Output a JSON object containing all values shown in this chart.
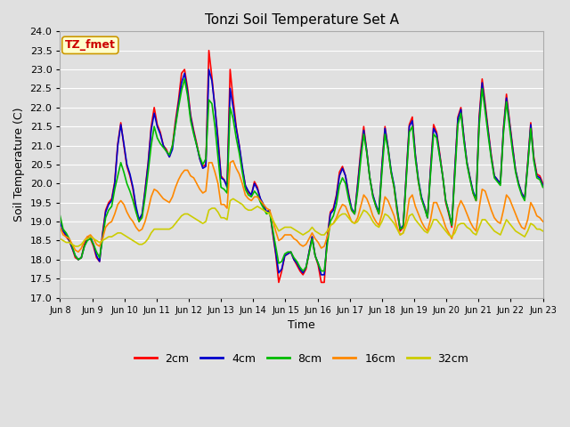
{
  "title": "Tonzi Soil Temperature Set A",
  "xlabel": "Time",
  "ylabel": "Soil Temperature (C)",
  "ylim": [
    17.0,
    24.0
  ],
  "yticks": [
    17.0,
    17.5,
    18.0,
    18.5,
    19.0,
    19.5,
    20.0,
    20.5,
    21.0,
    21.5,
    22.0,
    22.5,
    23.0,
    23.5,
    24.0
  ],
  "xtick_labels": [
    "Jun 8",
    "Jun 9",
    "Jun 10",
    "Jun 11",
    "Jun 12",
    "Jun 13",
    "Jun 14",
    "Jun 15",
    "Jun 16",
    "Jun 17",
    "Jun 18",
    "Jun 19",
    "Jun 20",
    "Jun 21",
    "Jun 22",
    "Jun 23"
  ],
  "annotation_text": "TZ_fmet",
  "annotation_color": "#cc0000",
  "annotation_bg": "#ffffcc",
  "annotation_border": "#cc9900",
  "background_color": "#e0e0e0",
  "grid_color": "#ffffff",
  "series": [
    {
      "label": "2cm",
      "color": "#ff0000",
      "linewidth": 1.2,
      "values": [
        19.05,
        18.75,
        18.6,
        18.5,
        18.3,
        18.05,
        18.0,
        18.05,
        18.4,
        18.6,
        18.55,
        18.35,
        18.05,
        17.95,
        18.7,
        19.3,
        19.5,
        19.6,
        20.05,
        21.05,
        21.6,
        21.0,
        20.45,
        20.2,
        19.85,
        19.3,
        19.0,
        19.15,
        19.85,
        20.55,
        21.5,
        22.0,
        21.55,
        21.35,
        21.0,
        20.9,
        20.7,
        21.0,
        21.65,
        22.2,
        22.9,
        23.0,
        22.5,
        21.8,
        21.4,
        21.05,
        20.65,
        20.45,
        20.5,
        23.5,
        22.8,
        22.0,
        21.2,
        20.2,
        20.1,
        19.95,
        23.0,
        22.2,
        21.5,
        21.0,
        20.4,
        19.95,
        19.75,
        19.7,
        20.05,
        19.9,
        19.55,
        19.4,
        19.25,
        19.3,
        18.7,
        18.15,
        17.4,
        17.7,
        18.1,
        18.15,
        18.2,
        18.0,
        17.85,
        17.7,
        17.6,
        17.75,
        18.2,
        18.6,
        18.1,
        17.85,
        17.4,
        17.4,
        18.6,
        19.25,
        19.35,
        19.7,
        20.3,
        20.45,
        20.2,
        19.75,
        19.3,
        19.2,
        20.0,
        20.85,
        21.5,
        20.85,
        20.15,
        19.7,
        19.4,
        19.2,
        20.5,
        21.5,
        20.95,
        20.3,
        19.9,
        19.25,
        18.75,
        18.85,
        20.25,
        21.55,
        21.75,
        20.75,
        20.05,
        19.6,
        19.4,
        19.1,
        20.4,
        21.55,
        21.35,
        20.8,
        20.2,
        19.5,
        19.2,
        18.85,
        20.4,
        21.75,
        22.0,
        21.2,
        20.55,
        20.15,
        19.75,
        19.55,
        21.75,
        22.75,
        22.1,
        21.4,
        20.75,
        20.2,
        20.1,
        20.0,
        21.45,
        22.35,
        21.65,
        21.0,
        20.35,
        20.0,
        19.75,
        19.6,
        20.55,
        21.6,
        20.7,
        20.25,
        20.2,
        20.0
      ]
    },
    {
      "label": "4cm",
      "color": "#0000cc",
      "linewidth": 1.2,
      "values": [
        19.0,
        18.75,
        18.65,
        18.5,
        18.3,
        18.1,
        18.0,
        18.05,
        18.35,
        18.55,
        18.6,
        18.4,
        18.1,
        17.95,
        18.65,
        19.25,
        19.45,
        19.55,
        20.0,
        21.0,
        21.55,
        21.05,
        20.5,
        20.25,
        19.9,
        19.4,
        19.05,
        19.2,
        19.8,
        20.5,
        21.4,
        21.85,
        21.5,
        21.3,
        21.0,
        20.85,
        20.7,
        20.9,
        21.55,
        22.1,
        22.65,
        22.9,
        22.4,
        21.75,
        21.35,
        21.0,
        20.65,
        20.4,
        20.45,
        23.0,
        22.7,
        22.0,
        21.1,
        20.15,
        20.1,
        19.9,
        22.5,
        22.0,
        21.45,
        21.0,
        20.45,
        19.95,
        19.8,
        19.7,
        20.0,
        19.85,
        19.6,
        19.45,
        19.25,
        19.3,
        18.75,
        18.2,
        17.65,
        17.75,
        18.1,
        18.15,
        18.2,
        18.0,
        17.9,
        17.75,
        17.65,
        17.8,
        18.2,
        18.6,
        18.1,
        17.9,
        17.6,
        17.6,
        18.55,
        19.2,
        19.3,
        19.65,
        20.2,
        20.4,
        20.2,
        19.7,
        19.35,
        19.2,
        19.95,
        20.75,
        21.4,
        20.85,
        20.15,
        19.7,
        19.45,
        19.25,
        20.45,
        21.45,
        20.95,
        20.35,
        19.95,
        19.35,
        18.8,
        18.9,
        20.2,
        21.5,
        21.65,
        20.75,
        20.1,
        19.65,
        19.4,
        19.1,
        20.35,
        21.45,
        21.3,
        20.75,
        20.2,
        19.55,
        19.25,
        18.9,
        20.35,
        21.7,
        21.95,
        21.2,
        20.55,
        20.15,
        19.8,
        19.6,
        21.65,
        22.65,
        22.0,
        21.35,
        20.7,
        20.2,
        20.1,
        20.0,
        21.4,
        22.25,
        21.6,
        20.95,
        20.35,
        20.0,
        19.75,
        19.6,
        20.5,
        21.55,
        20.65,
        20.2,
        20.15,
        19.95
      ]
    },
    {
      "label": "8cm",
      "color": "#00bb00",
      "linewidth": 1.2,
      "values": [
        19.15,
        18.8,
        18.7,
        18.55,
        18.35,
        18.1,
        18.0,
        18.05,
        18.35,
        18.5,
        18.55,
        18.4,
        18.2,
        18.05,
        18.55,
        19.1,
        19.3,
        19.4,
        19.85,
        20.2,
        20.55,
        20.3,
        20.0,
        19.8,
        19.55,
        19.25,
        19.0,
        19.1,
        19.65,
        20.3,
        21.0,
        21.5,
        21.2,
        21.05,
        20.95,
        20.85,
        20.75,
        21.0,
        21.5,
        22.0,
        22.45,
        22.75,
        22.3,
        21.65,
        21.3,
        21.0,
        20.7,
        20.5,
        20.65,
        22.2,
        22.1,
        21.5,
        20.7,
        19.9,
        19.85,
        19.75,
        22.0,
        21.7,
        21.2,
        20.8,
        20.3,
        19.85,
        19.7,
        19.65,
        19.8,
        19.7,
        19.5,
        19.35,
        19.2,
        19.25,
        18.8,
        18.35,
        17.9,
        17.95,
        18.15,
        18.2,
        18.2,
        18.05,
        17.95,
        17.8,
        17.7,
        17.8,
        18.15,
        18.55,
        18.1,
        17.9,
        17.7,
        17.7,
        18.4,
        19.0,
        19.15,
        19.45,
        19.95,
        20.15,
        20.0,
        19.6,
        19.3,
        19.2,
        19.8,
        20.6,
        21.3,
        20.8,
        20.15,
        19.65,
        19.4,
        19.2,
        20.3,
        21.3,
        20.9,
        20.3,
        19.9,
        19.3,
        18.8,
        18.85,
        20.1,
        21.35,
        21.5,
        20.65,
        20.05,
        19.6,
        19.35,
        19.1,
        20.25,
        21.3,
        21.2,
        20.7,
        20.2,
        19.55,
        19.25,
        18.9,
        20.2,
        21.55,
        21.85,
        21.1,
        20.5,
        20.1,
        19.75,
        19.55,
        21.5,
        22.5,
        21.9,
        21.25,
        20.65,
        20.15,
        20.05,
        19.95,
        21.3,
        22.15,
        21.5,
        20.85,
        20.3,
        19.95,
        19.7,
        19.55,
        20.45,
        21.45,
        20.6,
        20.15,
        20.1,
        19.9
      ]
    },
    {
      "label": "16cm",
      "color": "#ff8800",
      "linewidth": 1.2,
      "values": [
        18.85,
        18.65,
        18.6,
        18.55,
        18.4,
        18.25,
        18.2,
        18.3,
        18.5,
        18.6,
        18.65,
        18.55,
        18.4,
        18.35,
        18.55,
        18.85,
        18.95,
        19.0,
        19.2,
        19.45,
        19.55,
        19.45,
        19.25,
        19.1,
        19.0,
        18.85,
        18.75,
        18.8,
        19.0,
        19.3,
        19.65,
        19.85,
        19.8,
        19.7,
        19.6,
        19.55,
        19.5,
        19.65,
        19.9,
        20.1,
        20.25,
        20.35,
        20.35,
        20.2,
        20.15,
        20.0,
        19.85,
        19.75,
        19.8,
        20.55,
        20.55,
        20.3,
        20.0,
        19.45,
        19.45,
        19.35,
        20.55,
        20.6,
        20.4,
        20.25,
        20.0,
        19.7,
        19.6,
        19.55,
        19.65,
        19.65,
        19.55,
        19.45,
        19.35,
        19.3,
        19.05,
        18.75,
        18.5,
        18.55,
        18.65,
        18.65,
        18.65,
        18.55,
        18.5,
        18.4,
        18.35,
        18.4,
        18.55,
        18.7,
        18.55,
        18.45,
        18.3,
        18.35,
        18.6,
        18.9,
        18.95,
        19.1,
        19.3,
        19.45,
        19.4,
        19.2,
        19.0,
        18.95,
        19.1,
        19.4,
        19.7,
        19.6,
        19.4,
        19.15,
        19.0,
        18.9,
        19.2,
        19.65,
        19.55,
        19.35,
        19.15,
        18.85,
        18.65,
        18.7,
        19.05,
        19.6,
        19.7,
        19.4,
        19.2,
        19.0,
        18.85,
        18.75,
        19.05,
        19.5,
        19.5,
        19.3,
        19.1,
        18.85,
        18.7,
        18.55,
        18.85,
        19.35,
        19.55,
        19.4,
        19.2,
        19.0,
        18.85,
        18.75,
        19.35,
        19.85,
        19.8,
        19.55,
        19.3,
        19.1,
        19.0,
        18.95,
        19.3,
        19.7,
        19.6,
        19.4,
        19.2,
        19.0,
        18.85,
        18.8,
        19.05,
        19.5,
        19.35,
        19.15,
        19.1,
        19.0
      ]
    },
    {
      "label": "32cm",
      "color": "#cccc00",
      "linewidth": 1.2,
      "values": [
        18.55,
        18.5,
        18.45,
        18.45,
        18.4,
        18.35,
        18.35,
        18.4,
        18.5,
        18.55,
        18.6,
        18.55,
        18.5,
        18.45,
        18.5,
        18.55,
        18.6,
        18.6,
        18.65,
        18.7,
        18.7,
        18.65,
        18.6,
        18.55,
        18.5,
        18.45,
        18.4,
        18.4,
        18.45,
        18.55,
        18.7,
        18.8,
        18.8,
        18.8,
        18.8,
        18.8,
        18.8,
        18.85,
        18.95,
        19.05,
        19.15,
        19.2,
        19.2,
        19.15,
        19.1,
        19.05,
        19.0,
        18.95,
        19.0,
        19.3,
        19.35,
        19.35,
        19.25,
        19.1,
        19.1,
        19.05,
        19.55,
        19.6,
        19.55,
        19.5,
        19.45,
        19.35,
        19.3,
        19.3,
        19.35,
        19.4,
        19.35,
        19.3,
        19.25,
        19.2,
        19.05,
        18.9,
        18.75,
        18.8,
        18.85,
        18.85,
        18.85,
        18.8,
        18.75,
        18.7,
        18.65,
        18.7,
        18.75,
        18.85,
        18.75,
        18.7,
        18.65,
        18.65,
        18.75,
        18.9,
        18.95,
        19.05,
        19.15,
        19.2,
        19.2,
        19.1,
        19.0,
        18.95,
        19.0,
        19.15,
        19.3,
        19.25,
        19.15,
        19.0,
        18.9,
        18.85,
        19.0,
        19.2,
        19.15,
        19.05,
        18.95,
        18.8,
        18.65,
        18.7,
        18.9,
        19.15,
        19.2,
        19.05,
        18.95,
        18.85,
        18.75,
        18.7,
        18.85,
        19.05,
        19.05,
        18.95,
        18.85,
        18.75,
        18.65,
        18.6,
        18.7,
        18.9,
        18.95,
        18.95,
        18.85,
        18.8,
        18.7,
        18.65,
        18.85,
        19.05,
        19.05,
        18.95,
        18.85,
        18.75,
        18.7,
        18.65,
        18.85,
        19.05,
        18.95,
        18.85,
        18.75,
        18.7,
        18.65,
        18.6,
        18.75,
        18.95,
        18.9,
        18.8,
        18.8,
        18.75
      ]
    }
  ]
}
